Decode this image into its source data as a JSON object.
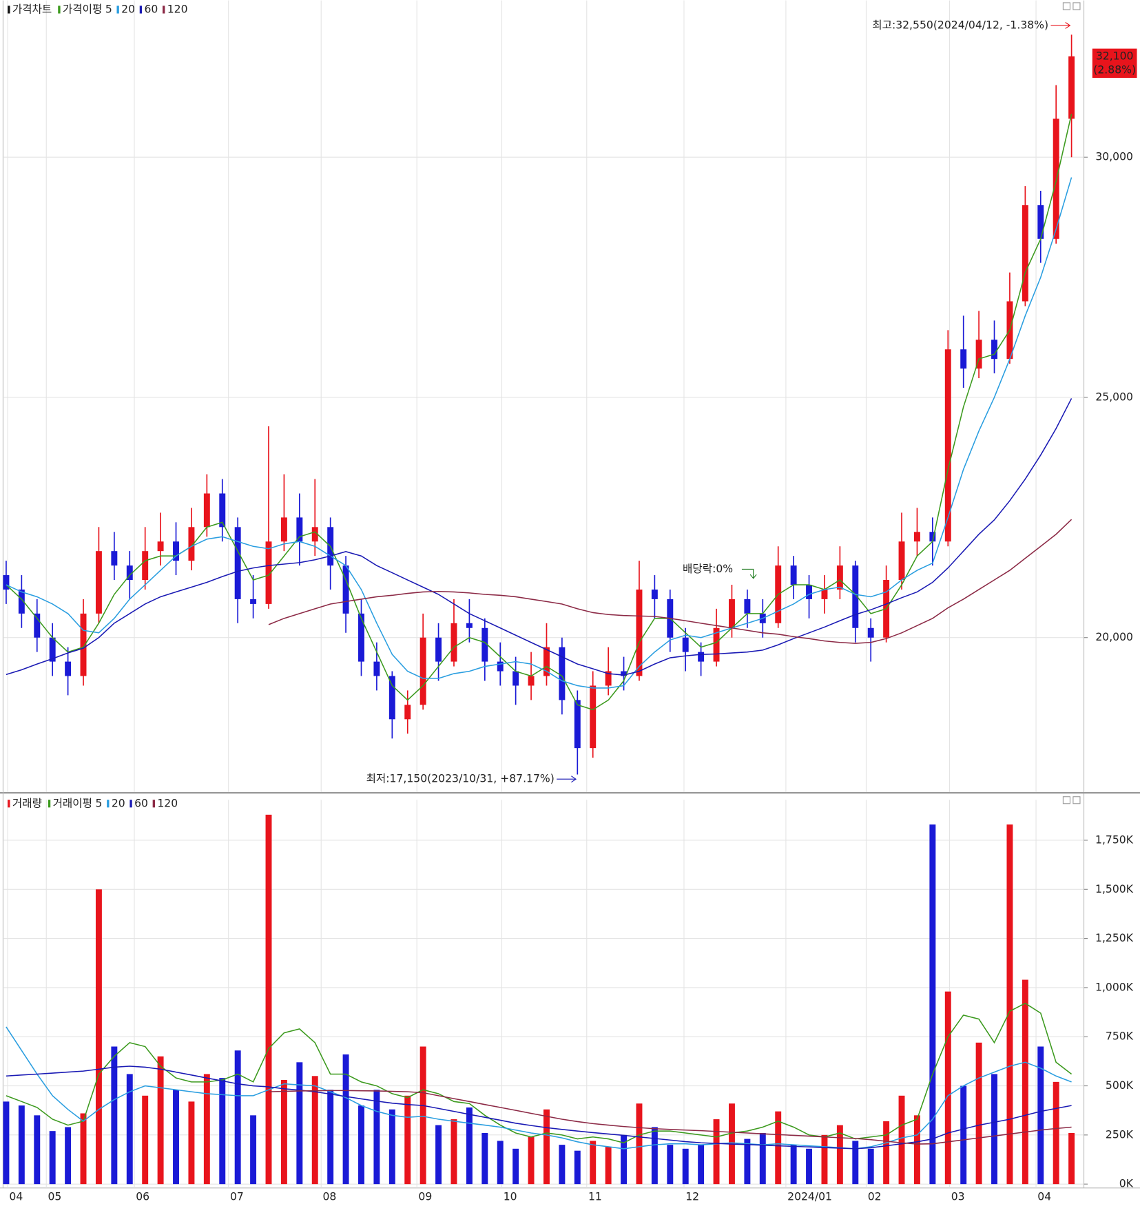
{
  "chart_data": [
    {
      "type": "candlestick",
      "legend_title": "가격차트",
      "legend_label": "가격이평",
      "up_color": "#e8141c",
      "down_color": "#1a1ad6",
      "open": [
        21300,
        21000,
        20500,
        20000,
        19500,
        19200,
        20500,
        21800,
        21500,
        21200,
        21800,
        22000,
        21600,
        22300,
        23000,
        22300,
        20800,
        20700,
        22000,
        22500,
        22000,
        22300,
        21500,
        20500,
        19500,
        19200,
        18300,
        18600,
        20000,
        19500,
        20300,
        20200,
        19500,
        19300,
        19000,
        19200,
        19800,
        18700,
        17700,
        19000,
        19300,
        19200,
        21000,
        20800,
        20000,
        19700,
        19500,
        20200,
        20800,
        20500,
        20300,
        21500,
        21100,
        20800,
        21000,
        21500,
        20200,
        20000,
        21200,
        22000,
        22200,
        22000,
        26000,
        25600,
        26200,
        25800,
        27000,
        29000,
        28300,
        30800
      ],
      "high": [
        21600,
        21300,
        20800,
        20300,
        19800,
        20800,
        22300,
        22200,
        21800,
        22300,
        22600,
        22400,
        22700,
        23400,
        23300,
        22500,
        21300,
        24400,
        23400,
        23000,
        23300,
        22500,
        21700,
        20800,
        19900,
        19300,
        18900,
        20500,
        20300,
        20800,
        20800,
        20400,
        19900,
        19600,
        19700,
        20300,
        20000,
        18900,
        19300,
        19800,
        19600,
        21600,
        21300,
        21000,
        20200,
        19900,
        20600,
        21100,
        21000,
        20800,
        21900,
        21700,
        21300,
        21300,
        21900,
        21600,
        20400,
        21500,
        22600,
        22700,
        22500,
        26400,
        26700,
        26800,
        26600,
        27600,
        29400,
        29300,
        31500,
        32550
      ],
      "low": [
        20700,
        20200,
        19700,
        19200,
        18800,
        19000,
        20300,
        21200,
        20800,
        21000,
        21500,
        21300,
        21400,
        22100,
        22000,
        20300,
        20400,
        20600,
        21800,
        21500,
        21700,
        21000,
        20100,
        19200,
        18900,
        17900,
        18000,
        18500,
        19100,
        19400,
        19900,
        19100,
        19000,
        18600,
        18700,
        19000,
        18400,
        17150,
        17500,
        18800,
        18900,
        19100,
        20400,
        19700,
        19300,
        19200,
        19400,
        20000,
        20200,
        20000,
        20200,
        20800,
        20400,
        20500,
        20800,
        19900,
        19500,
        19900,
        21000,
        21700,
        21500,
        21900,
        25200,
        25400,
        25500,
        25700,
        26900,
        27800,
        28200,
        30000
      ],
      "close": [
        21000,
        20500,
        20000,
        19500,
        19200,
        20500,
        21800,
        21500,
        21200,
        21800,
        22000,
        21600,
        22300,
        23000,
        22300,
        20800,
        20700,
        22000,
        22500,
        22000,
        22300,
        21500,
        20500,
        19500,
        19200,
        18300,
        18600,
        20000,
        19500,
        20300,
        20200,
        19500,
        19300,
        19000,
        19200,
        19800,
        18700,
        17700,
        19000,
        19300,
        19200,
        21000,
        20800,
        20000,
        19700,
        19500,
        20200,
        20800,
        20500,
        20300,
        21500,
        21100,
        20800,
        21000,
        21500,
        20200,
        20000,
        21200,
        22000,
        22200,
        22000,
        26000,
        25600,
        26200,
        25800,
        27000,
        29000,
        28300,
        30800,
        32100
      ],
      "series": [
        {
          "name": "5",
          "color": "#3c9a1e",
          "values": [
            21100,
            20800,
            20400,
            20000,
            19700,
            19800,
            20300,
            20900,
            21300,
            21600,
            21700,
            21700,
            21900,
            22300,
            22400,
            21800,
            21200,
            21300,
            21700,
            22100,
            22200,
            21900,
            21200,
            20400,
            19700,
            19000,
            18700,
            19000,
            19400,
            19800,
            20000,
            19900,
            19600,
            19300,
            19200,
            19400,
            19200,
            18600,
            18500,
            18700,
            19100,
            19900,
            20400,
            20400,
            20100,
            19800,
            19900,
            20200,
            20500,
            20500,
            20900,
            21100,
            21100,
            21000,
            21200,
            20900,
            20500,
            20600,
            21100,
            21700,
            22000,
            23500,
            24800,
            25800,
            25900,
            26400,
            27600,
            28300,
            29500,
            30900
          ]
        },
        {
          "name": "20",
          "color": "#2a9ee0",
          "values": [
            21100,
            20950,
            20850,
            20700,
            20500,
            20150,
            20100,
            20400,
            20800,
            21100,
            21400,
            21700,
            21900,
            22050,
            22100,
            22000,
            21900,
            21850,
            21950,
            22000,
            21900,
            21700,
            21500,
            21000,
            20300,
            19650,
            19300,
            19150,
            19150,
            19250,
            19300,
            19400,
            19450,
            19500,
            19450,
            19300,
            19100,
            19000,
            18950,
            18950,
            19000,
            19400,
            19700,
            19950,
            20050,
            20000,
            20100,
            20200,
            20300,
            20400,
            20550,
            20700,
            20900,
            21000,
            21050,
            20900,
            20850,
            20950,
            21200,
            21400,
            21550,
            22500,
            23500,
            24300,
            25000,
            25800,
            26700,
            27500,
            28500,
            29580
          ]
        },
        {
          "name": "60",
          "color": "#1a1ab4",
          "values": [
            19230,
            19330,
            19450,
            19560,
            19680,
            19780,
            20000,
            20300,
            20500,
            20700,
            20850,
            20950,
            21050,
            21150,
            21270,
            21380,
            21450,
            21500,
            21530,
            21560,
            21620,
            21700,
            21790,
            21700,
            21500,
            21350,
            21200,
            21050,
            20900,
            20700,
            20500,
            20350,
            20200,
            20050,
            19900,
            19750,
            19600,
            19450,
            19350,
            19250,
            19220,
            19300,
            19450,
            19580,
            19620,
            19650,
            19660,
            19680,
            19700,
            19740,
            19850,
            19980,
            20100,
            20220,
            20350,
            20480,
            20580,
            20700,
            20830,
            20950,
            21150,
            21450,
            21800,
            22150,
            22450,
            22850,
            23300,
            23800,
            24350,
            24980
          ]
        },
        {
          "name": "120",
          "color": "#8c2a46",
          "values": [
            null,
            null,
            null,
            null,
            null,
            null,
            null,
            null,
            null,
            null,
            null,
            null,
            null,
            null,
            null,
            null,
            null,
            20270,
            20400,
            20500,
            20600,
            20700,
            20750,
            20800,
            20850,
            20880,
            20920,
            20950,
            20960,
            20950,
            20930,
            20900,
            20880,
            20850,
            20800,
            20750,
            20700,
            20600,
            20520,
            20480,
            20460,
            20450,
            20440,
            20400,
            20350,
            20300,
            20250,
            20200,
            20150,
            20100,
            20070,
            20020,
            19980,
            19930,
            19900,
            19880,
            19900,
            19980,
            20100,
            20250,
            20400,
            20620,
            20800,
            21000,
            21200,
            21400,
            21650,
            21900,
            22150,
            22460
          ]
        }
      ],
      "ylim": [
        16784,
        33264
      ],
      "yticks": [
        {
          "value": 20000,
          "label": "20,000"
        },
        {
          "value": 25000,
          "label": "25,000"
        },
        {
          "value": 30000,
          "label": "30,000"
        }
      ],
      "xlim": [
        -0.15,
        69.8
      ],
      "grid": true,
      "high_note": "최고:32,550(2024/04/12, -1.38%)",
      "low_note": "최저:17,150(2023/10/31, +87.17%)",
      "dividend_note": "배당락:0%",
      "last_label": "32,100",
      "last_change": "(2.88%)"
    },
    {
      "type": "bar",
      "legend_title": "거래량",
      "legend_label": "거래이평",
      "values": [
        420,
        400,
        350,
        270,
        290,
        360,
        1500,
        700,
        560,
        450,
        650,
        480,
        420,
        560,
        540,
        680,
        350,
        1880,
        530,
        620,
        550,
        480,
        660,
        400,
        480,
        380,
        450,
        700,
        300,
        330,
        390,
        260,
        220,
        180,
        240,
        380,
        200,
        170,
        220,
        190,
        250,
        410,
        290,
        200,
        180,
        200,
        330,
        410,
        230,
        260,
        370,
        200,
        180,
        250,
        300,
        220,
        180,
        320,
        450,
        350,
        1830,
        980,
        500,
        720,
        560,
        1830,
        1040,
        700,
        520,
        260
      ],
      "series": [
        {
          "name": "5",
          "color": "#3c9a1e",
          "values": [
            450,
            420,
            390,
            330,
            300,
            320,
            560,
            650,
            720,
            700,
            600,
            540,
            520,
            520,
            530,
            560,
            520,
            690,
            770,
            790,
            720,
            560,
            560,
            520,
            500,
            460,
            440,
            480,
            460,
            420,
            410,
            350,
            300,
            260,
            240,
            260,
            250,
            230,
            240,
            230,
            210,
            250,
            270,
            270,
            260,
            250,
            240,
            260,
            270,
            290,
            320,
            290,
            250,
            240,
            260,
            230,
            240,
            250,
            300,
            330,
            560,
            750,
            860,
            840,
            720,
            880,
            920,
            870,
            620,
            560
          ]
        },
        {
          "name": "20",
          "color": "#2a9ee0",
          "values": [
            800,
            680,
            560,
            450,
            380,
            320,
            380,
            430,
            470,
            500,
            490,
            480,
            470,
            460,
            455,
            450,
            450,
            480,
            510,
            505,
            500,
            470,
            440,
            400,
            370,
            350,
            340,
            345,
            330,
            320,
            310,
            300,
            290,
            275,
            260,
            250,
            235,
            215,
            200,
            190,
            180,
            190,
            200,
            205,
            205,
            200,
            205,
            210,
            205,
            200,
            205,
            200,
            195,
            190,
            185,
            180,
            190,
            210,
            235,
            250,
            330,
            450,
            500,
            540,
            570,
            600,
            620,
            590,
            550,
            520
          ]
        },
        {
          "name": "60",
          "color": "#1a1ab4",
          "values": [
            550,
            555,
            560,
            565,
            570,
            575,
            585,
            595,
            600,
            595,
            585,
            570,
            555,
            540,
            525,
            510,
            500,
            495,
            485,
            478,
            470,
            458,
            446,
            434,
            422,
            412,
            405,
            400,
            385,
            370,
            355,
            340,
            325,
            310,
            298,
            287,
            278,
            270,
            262,
            255,
            248,
            240,
            232,
            224,
            216,
            210,
            207,
            204,
            201,
            198,
            195,
            192,
            189,
            186,
            183,
            180,
            185,
            195,
            205,
            215,
            230,
            260,
            280,
            300,
            315,
            330,
            350,
            370,
            385,
            400
          ]
        },
        {
          "name": "120",
          "color": "#8c2a46",
          "values": [
            null,
            null,
            null,
            null,
            null,
            null,
            null,
            null,
            null,
            null,
            null,
            null,
            null,
            null,
            null,
            null,
            null,
            470,
            472,
            474,
            475,
            476,
            476,
            475,
            474,
            472,
            470,
            465,
            450,
            435,
            420,
            405,
            390,
            375,
            360,
            345,
            330,
            318,
            308,
            300,
            293,
            287,
            282,
            278,
            275,
            272,
            268,
            264,
            260,
            256,
            252,
            248,
            244,
            240,
            236,
            232,
            226,
            218,
            210,
            204,
            205,
            215,
            225,
            235,
            245,
            255,
            265,
            275,
            283,
            290
          ]
        }
      ],
      "ylim": [
        0,
        1956
      ],
      "yticks": [
        {
          "value": 0,
          "label": "0K"
        },
        {
          "value": 250,
          "label": "250K"
        },
        {
          "value": 500,
          "label": "500K"
        },
        {
          "value": 750,
          "label": "750K"
        },
        {
          "value": 1000,
          "label": "1,000K"
        },
        {
          "value": 1250,
          "label": "1,250K"
        },
        {
          "value": 1500,
          "label": "1,500K"
        },
        {
          "value": 1750,
          "label": "1,750K"
        }
      ],
      "xlim": [
        -0.15,
        69.8
      ],
      "xticks": [
        {
          "value": 0.1,
          "label": "04"
        },
        {
          "value": 2.6,
          "label": "05"
        },
        {
          "value": 8.3,
          "label": "06"
        },
        {
          "value": 14.4,
          "label": "07"
        },
        {
          "value": 20.4,
          "label": "08"
        },
        {
          "value": 26.6,
          "label": "09"
        },
        {
          "value": 32.1,
          "label": "10"
        },
        {
          "value": 37.6,
          "label": "11"
        },
        {
          "value": 43.9,
          "label": "12"
        },
        {
          "value": 50.5,
          "label": "2024/01"
        },
        {
          "value": 55.7,
          "label": "02"
        },
        {
          "value": 61.1,
          "label": "03"
        },
        {
          "value": 66.7,
          "label": "04"
        }
      ],
      "grid": true
    }
  ]
}
